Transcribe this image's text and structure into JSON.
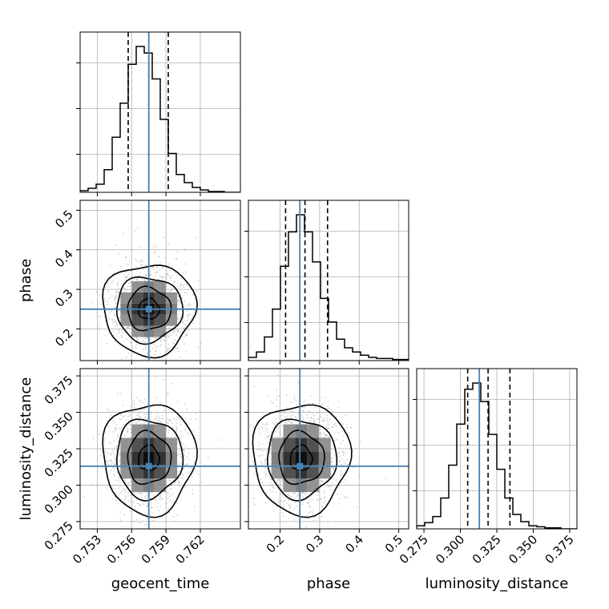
{
  "chart_data": {
    "type": "corner",
    "parameters": [
      {
        "name": "geocent_time",
        "ticks": [
          0.753,
          0.756,
          0.759,
          0.762
        ],
        "tick_labels": [
          "0.753",
          "0.756",
          "0.759",
          "0.762"
        ],
        "range": [
          0.7515,
          0.7655
        ],
        "truth": 0.7575,
        "quantiles": [
          0.7557,
          0.7575,
          0.7592
        ]
      },
      {
        "name": "phase",
        "ticks": [
          0.2,
          0.3,
          0.4,
          0.5
        ],
        "tick_labels": [
          "0.2",
          "0.3",
          "0.4",
          "0.5"
        ],
        "range": [
          0.12,
          0.525
        ],
        "truth": 0.25,
        "quantiles": [
          0.214,
          0.263,
          0.32
        ]
      },
      {
        "name": "luminosity_distance",
        "ticks": [
          0.275,
          0.3,
          0.325,
          0.35,
          0.375
        ],
        "tick_labels": [
          "0.275",
          "0.300",
          "0.325",
          "0.350",
          "0.375"
        ],
        "range": [
          0.27,
          0.38
        ],
        "truth": 0.313,
        "quantiles": [
          0.305,
          0.319,
          0.334
        ]
      }
    ],
    "histograms": [
      {
        "parameter": "geocent_time",
        "edges_start": 0.7515,
        "bin_width": 0.0007,
        "counts": [
          2,
          5,
          10,
          28,
          68,
          110,
          158,
          180,
          172,
          140,
          90,
          48,
          22,
          12,
          6,
          3,
          1,
          1,
          0,
          0
        ]
      },
      {
        "parameter": "phase",
        "edges_start": 0.12,
        "bin_width": 0.02025,
        "counts": [
          3,
          8,
          22,
          48,
          88,
          120,
          136,
          120,
          92,
          58,
          36,
          20,
          12,
          8,
          5,
          3,
          2,
          2,
          1,
          1
        ]
      },
      {
        "parameter": "luminosity_distance",
        "edges_start": 0.27,
        "bin_width": 0.0055,
        "counts": [
          3,
          6,
          12,
          30,
          62,
          102,
          136,
          142,
          124,
          92,
          58,
          30,
          14,
          7,
          3,
          2,
          1,
          1,
          0,
          0
        ]
      }
    ],
    "pairs": [
      {
        "x": "geocent_time",
        "y": "phase",
        "center": [
          0.7575,
          0.25
        ],
        "sigma": [
          0.00165,
          0.047
        ]
      },
      {
        "x": "geocent_time",
        "y": "luminosity_distance",
        "center": [
          0.7575,
          0.3185
        ],
        "sigma": [
          0.00165,
          0.0155
        ]
      },
      {
        "x": "phase",
        "y": "luminosity_distance",
        "center": [
          0.253,
          0.3185
        ],
        "sigma": [
          0.05,
          0.0155
        ]
      }
    ],
    "colors": {
      "truth": "#4682b4",
      "hist": "#000000",
      "points": "#9a9a9a",
      "grid": "#b0b0b0"
    },
    "grid": true
  }
}
